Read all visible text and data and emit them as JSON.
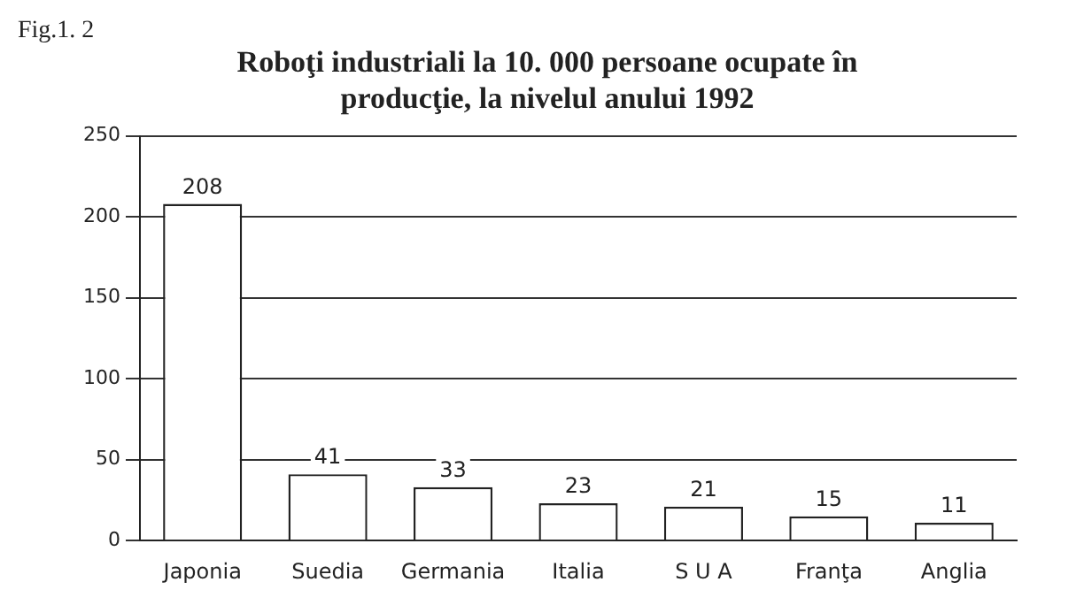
{
  "chart_data": {
    "type": "bar",
    "title": [
      "Roboţi industriali la 10. 000 persoane ocupate în",
      "producţie, la nivelul anului 1992"
    ],
    "categories": [
      "Japonia",
      "Suedia",
      "Germania",
      "Italia",
      "S U A",
      "Franţa",
      "Anglia"
    ],
    "values": [
      208,
      41,
      33,
      23,
      21,
      15,
      11
    ],
    "color": "#ffffff",
    "ylim": [
      0,
      250
    ],
    "yticks": [
      0,
      50,
      100,
      150,
      200,
      250
    ],
    "grid": "y",
    "data_labels": true,
    "annotations": [
      "Fig.1. 2"
    ]
  }
}
